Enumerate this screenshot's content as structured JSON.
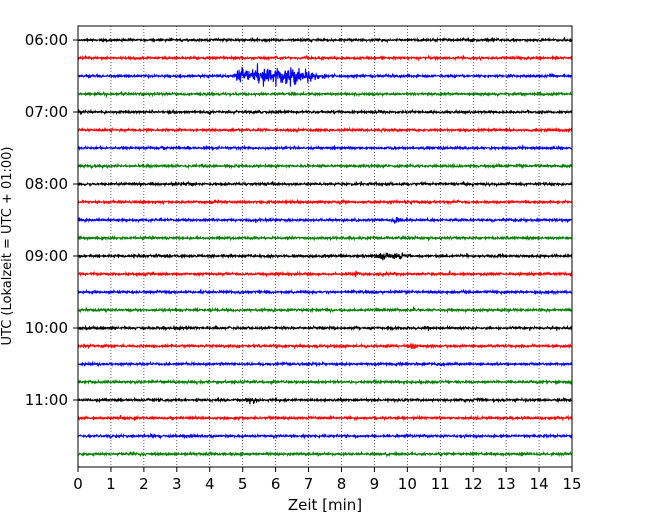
{
  "chart_data": {
    "type": "line",
    "title": "",
    "xlabel": "Zeit  [min]",
    "ylabel": "UTC (Lokalzeit = UTC + 01:00)",
    "xlim": [
      0,
      15
    ],
    "x_ticks": [
      0,
      1,
      2,
      3,
      4,
      5,
      6,
      7,
      8,
      9,
      10,
      11,
      12,
      13,
      14,
      15
    ],
    "x_tick_labels": [
      "0",
      "1",
      "2",
      "3",
      "4",
      "5",
      "6",
      "7",
      "8",
      "9",
      "10",
      "11",
      "12",
      "13",
      "14",
      "15"
    ],
    "y_ticks": [
      {
        "trace": 0,
        "label": "06:00"
      },
      {
        "trace": 4,
        "label": "07:00"
      },
      {
        "trace": 8,
        "label": "08:00"
      },
      {
        "trace": 12,
        "label": "09:00"
      },
      {
        "trace": 16,
        "label": "10:00"
      },
      {
        "trace": 20,
        "label": "11:00"
      }
    ],
    "grid": {
      "vertical": true,
      "style": "dotted"
    },
    "trace_interval_minutes": 15,
    "trace_count": 24,
    "trace_colors": [
      "#000000",
      "#ff0000",
      "#0000ff",
      "#008000"
    ],
    "events": [
      {
        "trace": 2,
        "x_start": 4.8,
        "x_peak": 6.4,
        "x_end": 7.6,
        "amplitude": "large"
      },
      {
        "trace": 10,
        "x_start": 9.5,
        "x_peak": 9.65,
        "x_end": 9.85,
        "amplitude": "medium"
      },
      {
        "trace": 12,
        "x_start": 9.0,
        "x_peak": 9.5,
        "x_end": 10.2,
        "amplitude": "small"
      },
      {
        "trace": 13,
        "x_start": 8.4,
        "x_peak": 8.45,
        "x_end": 8.55,
        "amplitude": "small"
      },
      {
        "trace": 17,
        "x_start": 10.1,
        "x_peak": 10.2,
        "x_end": 10.3,
        "amplitude": "small"
      },
      {
        "trace": 20,
        "x_start": 5.1,
        "x_peak": 5.3,
        "x_end": 5.5,
        "amplitude": "small"
      }
    ]
  }
}
